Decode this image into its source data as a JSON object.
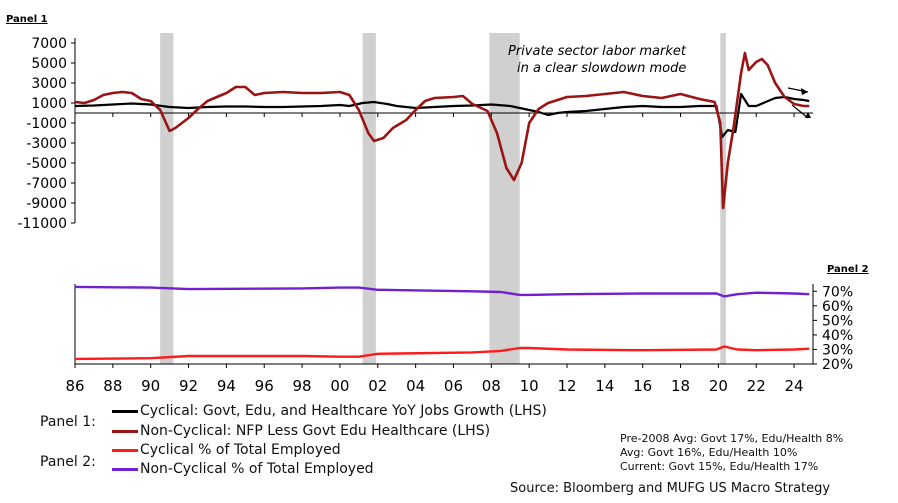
{
  "panel1_label": "Panel 1",
  "panel2_label": "Panel 2",
  "annotation": [
    "Private sector labor market",
    "in a clear slowdown mode"
  ],
  "legend": {
    "panel1_prefix": "Panel 1:",
    "panel2_prefix": "Panel 2:",
    "items": [
      {
        "label": "Cyclical: Govt, Edu, and Healthcare YoY Jobs Growth (LHS)",
        "color": "#000000"
      },
      {
        "label": "Non-Cyclical: NFP Less Govt Edu Healthcare (LHS)",
        "color": "#9b1414"
      },
      {
        "label": "Cyclical % of Total Employed",
        "color": "#ff1a1a"
      },
      {
        "label": "Non-Cyclical % of Total Employed",
        "color": "#7020d0"
      }
    ]
  },
  "notes": [
    "Pre-2008 Avg: Govt 17%, Edu/Health 8%",
    "Avg: Govt 16%, Edu/Health 10%",
    "Current: Govt 15%, Edu/Health 17%"
  ],
  "source": "Source: Bloomberg and MUFG US Macro Strategy",
  "chart_data": {
    "type": "line",
    "title": "",
    "x_tick_labels": [
      "86",
      "88",
      "90",
      "92",
      "94",
      "96",
      "98",
      "00",
      "02",
      "04",
      "06",
      "08",
      "10",
      "12",
      "14",
      "16",
      "18",
      "20",
      "22",
      "24"
    ],
    "x_ticks": [
      1986,
      1988,
      1990,
      1992,
      1994,
      1996,
      1998,
      2000,
      2002,
      2004,
      2006,
      2008,
      2010,
      2012,
      2014,
      2016,
      2018,
      2020,
      2022,
      2024
    ],
    "xlim": [
      1986,
      2025
    ],
    "recessions": [
      [
        1990.5,
        1991.2
      ],
      [
        2001.2,
        2001.9
      ],
      [
        2007.9,
        2009.5
      ],
      [
        2020.1,
        2020.4
      ]
    ],
    "panel1": {
      "ylim": [
        -11000,
        7000
      ],
      "y_ticks": [
        7000,
        5000,
        3000,
        1000,
        -1000,
        -3000,
        -5000,
        -7000,
        -9000,
        -11000
      ],
      "y_tick_labels": [
        "7000",
        "5000",
        "3000",
        "1000",
        "-1000",
        "-3000",
        "-5000",
        "-7000",
        "-9000",
        "-11000"
      ],
      "series": [
        {
          "name": "Cyclical: Govt, Edu, and Healthcare YoY Jobs Growth (LHS)",
          "color": "#000000",
          "points": [
            [
              1986,
              700
            ],
            [
              1987,
              750
            ],
            [
              1988,
              850
            ],
            [
              1989,
              950
            ],
            [
              1990,
              850
            ],
            [
              1991,
              600
            ],
            [
              1992,
              500
            ],
            [
              1993,
              600
            ],
            [
              1994,
              650
            ],
            [
              1995,
              650
            ],
            [
              1996,
              600
            ],
            [
              1997,
              600
            ],
            [
              1998,
              650
            ],
            [
              1999,
              700
            ],
            [
              2000,
              800
            ],
            [
              2000.5,
              700
            ],
            [
              2001.2,
              1000
            ],
            [
              2001.8,
              1100
            ],
            [
              2002.5,
              900
            ],
            [
              2003,
              700
            ],
            [
              2004,
              500
            ],
            [
              2005,
              600
            ],
            [
              2006,
              700
            ],
            [
              2007,
              750
            ],
            [
              2008,
              850
            ],
            [
              2009,
              700
            ],
            [
              2010,
              300
            ],
            [
              2010.5,
              100
            ],
            [
              2011,
              -200
            ],
            [
              2011.5,
              0
            ],
            [
              2012,
              100
            ],
            [
              2013,
              200
            ],
            [
              2014,
              400
            ],
            [
              2015,
              600
            ],
            [
              2016,
              700
            ],
            [
              2017,
              600
            ],
            [
              2018,
              600
            ],
            [
              2019,
              700
            ],
            [
              2019.9,
              700
            ],
            [
              2020.2,
              -2400
            ],
            [
              2020.5,
              -1700
            ],
            [
              2020.9,
              -1900
            ],
            [
              2021.2,
              1900
            ],
            [
              2021.6,
              700
            ],
            [
              2022,
              700
            ],
            [
              2022.5,
              1100
            ],
            [
              2023,
              1500
            ],
            [
              2023.5,
              1600
            ],
            [
              2024,
              1400
            ],
            [
              2024.5,
              1300
            ],
            [
              2024.8,
              1200
            ]
          ]
        },
        {
          "name": "Non-Cyclical: NFP Less Govt Edu Healthcare (LHS)",
          "color": "#9b1414",
          "points": [
            [
              1986,
              1100
            ],
            [
              1986.5,
              1000
            ],
            [
              1987,
              1300
            ],
            [
              1987.5,
              1800
            ],
            [
              1988,
              2000
            ],
            [
              1988.5,
              2100
            ],
            [
              1989,
              2000
            ],
            [
              1989.5,
              1400
            ],
            [
              1990,
              1200
            ],
            [
              1990.5,
              300
            ],
            [
              1991,
              -1800
            ],
            [
              1991.3,
              -1500
            ],
            [
              1992,
              -500
            ],
            [
              1992.5,
              400
            ],
            [
              1993,
              1200
            ],
            [
              1993.5,
              1600
            ],
            [
              1994,
              2000
            ],
            [
              1994.5,
              2600
            ],
            [
              1995,
              2600
            ],
            [
              1995.5,
              1800
            ],
            [
              1996,
              2000
            ],
            [
              1997,
              2100
            ],
            [
              1998,
              2000
            ],
            [
              1999,
              2000
            ],
            [
              2000,
              2100
            ],
            [
              2000.5,
              1800
            ],
            [
              2001,
              300
            ],
            [
              2001.5,
              -2000
            ],
            [
              2001.8,
              -2800
            ],
            [
              2002.3,
              -2500
            ],
            [
              2002.8,
              -1500
            ],
            [
              2003.5,
              -700
            ],
            [
              2004,
              300
            ],
            [
              2004.5,
              1200
            ],
            [
              2005,
              1500
            ],
            [
              2006,
              1600
            ],
            [
              2006.5,
              1700
            ],
            [
              2007,
              900
            ],
            [
              2007.8,
              200
            ],
            [
              2008.3,
              -2000
            ],
            [
              2008.8,
              -5500
            ],
            [
              2009.2,
              -6700
            ],
            [
              2009.6,
              -5000
            ],
            [
              2010,
              -1000
            ],
            [
              2010.5,
              400
            ],
            [
              2011,
              1000
            ],
            [
              2012,
              1600
            ],
            [
              2013,
              1700
            ],
            [
              2014,
              1900
            ],
            [
              2015,
              2100
            ],
            [
              2016,
              1700
            ],
            [
              2017,
              1500
            ],
            [
              2018,
              1900
            ],
            [
              2019,
              1400
            ],
            [
              2019.8,
              1100
            ],
            [
              2020.1,
              -1000
            ],
            [
              2020.25,
              -9500
            ],
            [
              2020.5,
              -5000
            ],
            [
              2020.8,
              -1500
            ],
            [
              2021.2,
              4000
            ],
            [
              2021.4,
              6000
            ],
            [
              2021.6,
              4300
            ],
            [
              2022,
              5100
            ],
            [
              2022.3,
              5400
            ],
            [
              2022.6,
              4800
            ],
            [
              2023,
              3000
            ],
            [
              2023.5,
              1600
            ],
            [
              2024,
              900
            ],
            [
              2024.5,
              700
            ],
            [
              2024.8,
              700
            ]
          ]
        }
      ]
    },
    "panel2": {
      "ylim": [
        20,
        75
      ],
      "y_ticks": [
        70,
        60,
        50,
        40,
        30,
        20
      ],
      "y_tick_labels": [
        "70%",
        "60%",
        "50%",
        "40%",
        "30%",
        "20%"
      ],
      "series": [
        {
          "name": "Cyclical % of Total Employed",
          "color": "#ff1a1a",
          "points": [
            [
              1986,
              23.5
            ],
            [
              1990,
              24
            ],
            [
              1992,
              25.5
            ],
            [
              1998,
              25.5
            ],
            [
              2000,
              25
            ],
            [
              2001,
              25
            ],
            [
              2002,
              27
            ],
            [
              2007,
              28
            ],
            [
              2008.5,
              29
            ],
            [
              2009.5,
              31
            ],
            [
              2010,
              31
            ],
            [
              2012,
              30
            ],
            [
              2016,
              29.5
            ],
            [
              2019.9,
              30
            ],
            [
              2020.3,
              32
            ],
            [
              2021,
              30
            ],
            [
              2022,
              29.5
            ],
            [
              2024,
              30
            ],
            [
              2024.8,
              30.5
            ]
          ]
        },
        {
          "name": "Non-Cyclical % of Total Employed",
          "color": "#7020d0",
          "points": [
            [
              1986,
              73
            ],
            [
              1990,
              72.5
            ],
            [
              1992,
              71.5
            ],
            [
              1998,
              72
            ],
            [
              2000,
              72.5
            ],
            [
              2001,
              72.5
            ],
            [
              2002,
              71
            ],
            [
              2007,
              70
            ],
            [
              2008.5,
              69.5
            ],
            [
              2009.5,
              67.5
            ],
            [
              2010,
              67.5
            ],
            [
              2012,
              68
            ],
            [
              2016,
              68.5
            ],
            [
              2019.9,
              68.5
            ],
            [
              2020.3,
              66.5
            ],
            [
              2021,
              68
            ],
            [
              2022,
              69
            ],
            [
              2024,
              68.5
            ],
            [
              2024.8,
              68
            ]
          ]
        }
      ]
    }
  }
}
